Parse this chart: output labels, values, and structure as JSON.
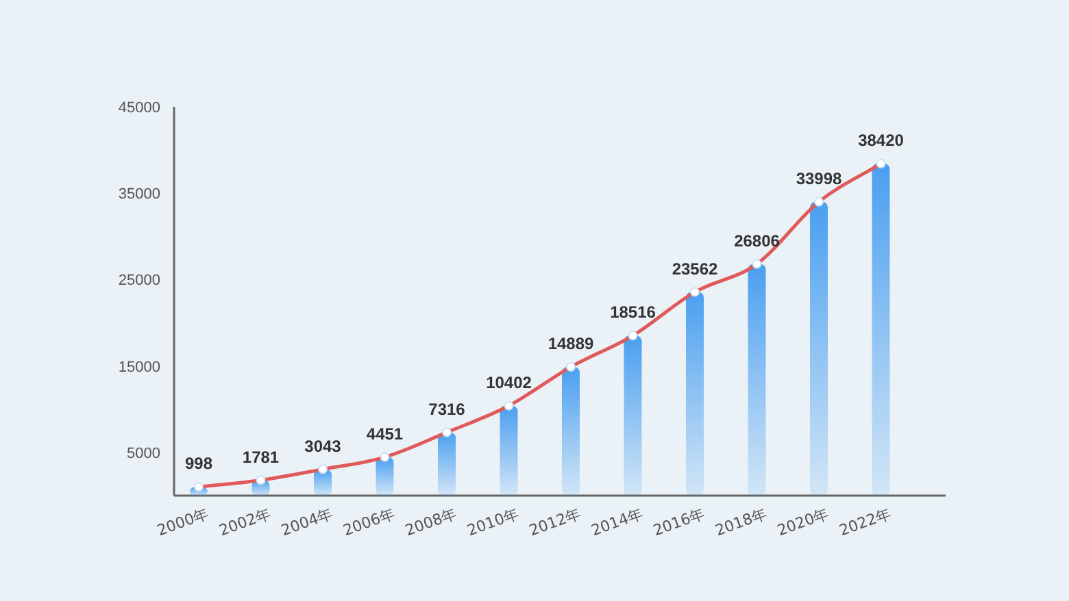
{
  "chart_data": {
    "type": "bar",
    "categories": [
      "2000年",
      "2002年",
      "2004年",
      "2006年",
      "2008年",
      "2010年",
      "2012年",
      "2014年",
      "2016年",
      "2018年",
      "2020年",
      "2022年"
    ],
    "series": [
      {
        "color": "#4a9ff0",
        "values": [
          998,
          1781,
          3043,
          4451,
          7316,
          10402,
          14889,
          18516,
          23562,
          26806,
          33998,
          38420
        ]
      },
      {
        "type": "line",
        "color": "#e05a5a",
        "values": [
          998,
          1781,
          3043,
          4451,
          7316,
          10402,
          14889,
          18516,
          23562,
          26806,
          33998,
          38420
        ],
        "value_labels": [
          "998",
          "1781",
          "3043",
          "4451",
          "7316",
          "10402",
          "14889",
          "18516",
          "23562",
          "26806",
          "33998",
          "38420"
        ]
      }
    ],
    "ylim": [
      0,
      45000
    ],
    "yticks": [
      5000,
      15000,
      25000,
      35000,
      45000
    ],
    "marker": "circle"
  }
}
